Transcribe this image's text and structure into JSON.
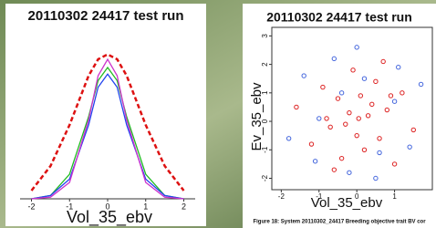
{
  "chart_data": [
    {
      "type": "line",
      "title": "20110302 24417 test run",
      "x_label": "Vol_35_ebv",
      "x": [
        -2,
        -1.5,
        -1,
        -0.5,
        -0.25,
        0,
        0.25,
        0.5,
        1,
        1.5,
        2
      ],
      "series": [
        {
          "color": "#dd1111",
          "dashed": true,
          "values": [
            0.05,
            0.2,
            0.45,
            0.75,
            0.85,
            0.88,
            0.85,
            0.75,
            0.45,
            0.2,
            0.05
          ]
        },
        {
          "color": "#22bb22",
          "values": [
            0,
            0.02,
            0.15,
            0.5,
            0.72,
            0.8,
            0.72,
            0.5,
            0.15,
            0.02,
            0
          ]
        },
        {
          "color": "#2244ee",
          "values": [
            0,
            0.02,
            0.12,
            0.45,
            0.68,
            0.76,
            0.68,
            0.45,
            0.12,
            0.02,
            0
          ]
        },
        {
          "color": "#cc33cc",
          "values": [
            0,
            0.01,
            0.1,
            0.48,
            0.75,
            0.85,
            0.75,
            0.48,
            0.1,
            0.01,
            0
          ]
        }
      ],
      "xlim": [
        -2.3,
        2.3
      ],
      "xticks": [
        -2,
        -1,
        0,
        1,
        2
      ],
      "ylim": [
        0,
        1
      ]
    },
    {
      "type": "scatter",
      "title": "20110302 24417 test run",
      "x_label": "Vol_35_ebv",
      "y_label": "Ev_35_ebv",
      "caption": "Figure 18: System 20110302_24417 Breeding objective trait BV cor",
      "series": [
        {
          "color": "#dd2222",
          "x": [
            -1.6,
            -1.2,
            -0.9,
            -0.7,
            -0.5,
            -0.4,
            -0.2,
            -0.1,
            0,
            0.1,
            0.2,
            0.3,
            0.5,
            0.6,
            0.8,
            1.0,
            1.2,
            1.5,
            -0.3,
            0.4,
            -0.8,
            0.7,
            -0.6,
            0.9,
            0.05
          ],
          "y": [
            0.5,
            -0.8,
            1.2,
            -0.2,
            0.8,
            -1.3,
            0.3,
            1.8,
            -0.5,
            0.9,
            -1.0,
            0.2,
            1.4,
            -0.6,
            0.4,
            -1.5,
            1.0,
            -0.3,
            -0.1,
            0.6,
            0.1,
            2.1,
            -1.7,
            0.9,
            0.1
          ]
        },
        {
          "color": "#4466dd",
          "x": [
            -1.8,
            -1.4,
            -1.0,
            -0.6,
            -0.2,
            0.2,
            0.6,
            1.0,
            1.4,
            1.7,
            -1.1,
            0.0,
            1.1,
            -0.4,
            0.5
          ],
          "y": [
            -0.6,
            1.6,
            0.1,
            2.2,
            -1.8,
            1.5,
            -1.1,
            0.7,
            -0.9,
            1.3,
            -1.4,
            2.6,
            1.9,
            1.0,
            -2.0
          ]
        }
      ],
      "xlim": [
        -2.25,
        2.0
      ],
      "xticks": [
        -2,
        -1,
        0,
        1
      ],
      "ylim": [
        -2.4,
        3.3
      ],
      "yticks": [
        -2,
        -1,
        0,
        1,
        2,
        3
      ]
    }
  ]
}
